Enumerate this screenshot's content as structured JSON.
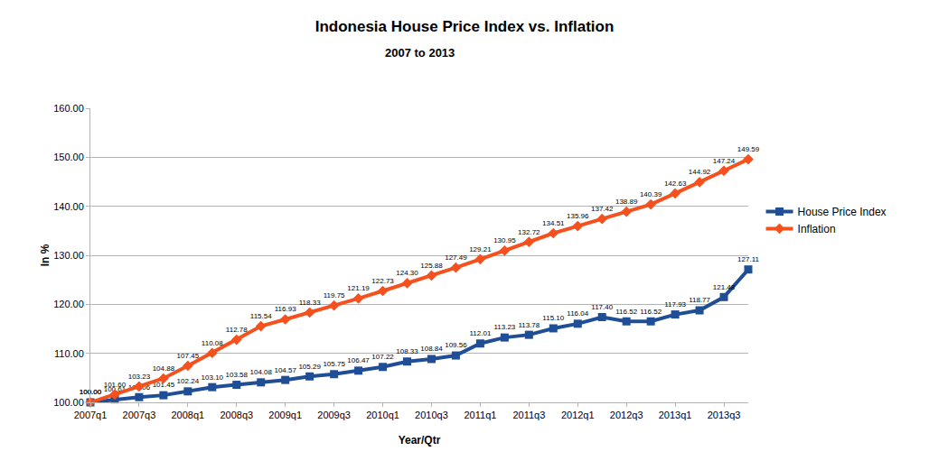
{
  "chart_data": {
    "type": "line",
    "title": "Indonesia House Price Index vs. Inflation",
    "subtitle": "2007 to 2013",
    "x_label": "Year/Qtr",
    "y_label": "In %",
    "categories": [
      "2007q1",
      null,
      "2007q3",
      null,
      "2008q1",
      null,
      "2008q3",
      null,
      "2009q1",
      null,
      "2009q3",
      null,
      "2010q1",
      null,
      "2010q3",
      null,
      "2011q1",
      null,
      "2011q3",
      null,
      "2012q1",
      null,
      "2012q3",
      null,
      "2013q1",
      null,
      "2013q3",
      null
    ],
    "series": [
      {
        "name": "House Price Index",
        "color": "#1f4e96",
        "marker": "square",
        "values": [
          100.0,
          100.61,
          101.06,
          101.45,
          102.24,
          103.1,
          103.58,
          104.08,
          104.57,
          105.29,
          105.75,
          106.47,
          107.22,
          108.33,
          108.84,
          109.56,
          112.01,
          113.23,
          113.78,
          115.1,
          116.04,
          117.4,
          116.52,
          116.52,
          117.93,
          118.77,
          121.48,
          127.11
        ],
        "value_labels": [
          "100.00",
          "100.61",
          "101.06",
          "101.45",
          "102.24",
          "103.10",
          "103.58",
          "104.08",
          "104.57",
          "105.29",
          "105.75",
          "106.47",
          "107.22",
          "108.33",
          "108.84",
          "109.56",
          "112.01",
          "113.23",
          "113.78",
          "115.10",
          "116.04",
          "117.40",
          "116.52",
          "116.52",
          "117.93",
          "118.77",
          "121.48",
          "127.11"
        ]
      },
      {
        "name": "Inflation",
        "color": "#f4511e",
        "marker": "diamond",
        "values": [
          100.0,
          101.6,
          103.23,
          104.88,
          107.45,
          110.08,
          112.78,
          115.54,
          116.93,
          118.33,
          119.75,
          121.19,
          122.73,
          124.3,
          125.88,
          127.49,
          129.21,
          130.95,
          132.72,
          134.51,
          135.96,
          137.42,
          138.89,
          140.39,
          142.63,
          144.92,
          147.24,
          149.59
        ],
        "value_labels": [
          "100.00",
          "101.60",
          "103.23",
          "104.88",
          "107.45",
          "110.08",
          "112.78",
          "115.54",
          "116.93",
          "118.33",
          "119.75",
          "121.19",
          "122.73",
          "124.30",
          "125.88",
          "127.49",
          "129.21",
          "130.95",
          "132.72",
          "134.51",
          "135.96",
          "137.42",
          "138.89",
          "140.39",
          "142.63",
          "144.92",
          "147.24",
          "149.59"
        ]
      }
    ],
    "ylim": [
      100,
      160
    ],
    "yticks": [
      {
        "value": 100,
        "label": "100.00"
      },
      {
        "value": 110,
        "label": "110.00"
      },
      {
        "value": 120,
        "label": "120.00"
      },
      {
        "value": 130,
        "label": "130.00"
      },
      {
        "value": 140,
        "label": "140.00"
      },
      {
        "value": 150,
        "label": "150.00"
      },
      {
        "value": 160,
        "label": "160.00"
      }
    ],
    "grid": true,
    "legend": "right",
    "data_labels": true
  }
}
